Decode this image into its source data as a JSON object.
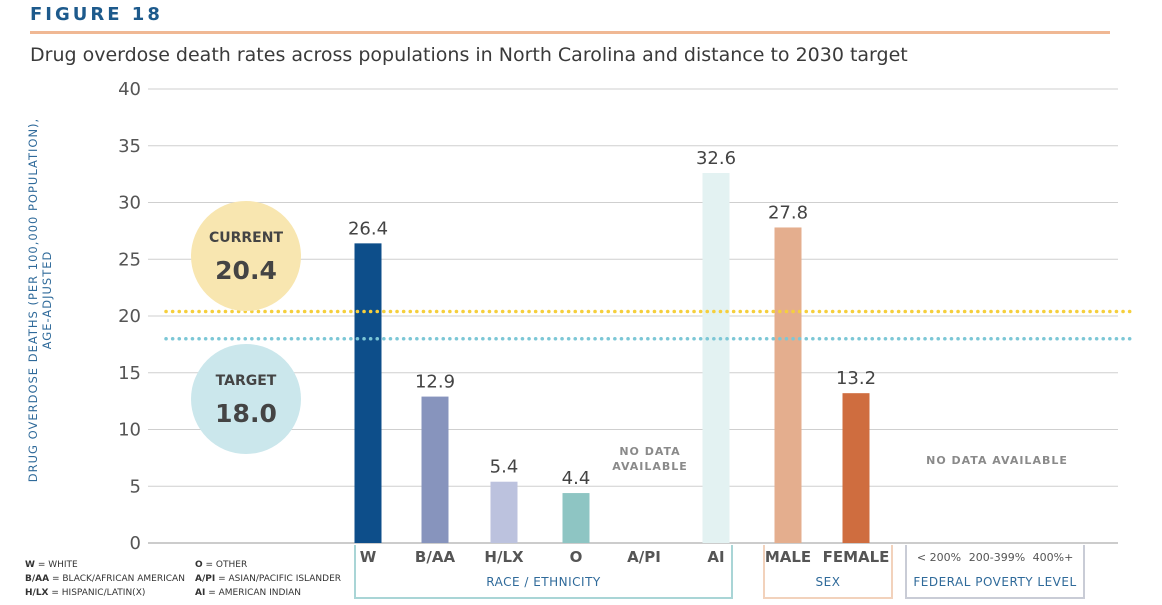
{
  "header": {
    "figure_label": "FIGURE 18",
    "title": "Drug overdose death rates across populations in North Carolina and distance to 2030 target"
  },
  "chart_data": {
    "type": "bar",
    "ylabel_line1": "DRUG OVERDOSE DEATHS (PER 100,000 POPULATION),",
    "ylabel_line2": "AGE-ADJUSTED",
    "ylim": [
      0,
      40
    ],
    "yticks": [
      0,
      5,
      10,
      15,
      20,
      25,
      30,
      35,
      40
    ],
    "grid": true,
    "categories": [
      "W",
      "B/AA",
      "H/LX",
      "O",
      "A/PI",
      "AI",
      "MALE",
      "FEMALE",
      "< 200%",
      "200-399%",
      "400%+"
    ],
    "bars": [
      {
        "category": "W",
        "value": 26.4,
        "label": "26.4",
        "color": "#0d4e8a"
      },
      {
        "category": "B/AA",
        "value": 12.9,
        "label": "12.9",
        "color": "#8794bd"
      },
      {
        "category": "H/LX",
        "value": 5.4,
        "label": "5.4",
        "color": "#bcc2de"
      },
      {
        "category": "O",
        "value": 4.4,
        "label": "4.4",
        "color": "#8ec5c3"
      },
      {
        "category": "AI",
        "value": 32.6,
        "label": "32.6",
        "color": "#e3f2f2"
      },
      {
        "category": "MALE",
        "value": 27.8,
        "label": "27.8",
        "color": "#e4ae8e"
      },
      {
        "category": "FEMALE",
        "value": 13.2,
        "label": "13.2",
        "color": "#cf6d3f"
      }
    ],
    "groups": [
      {
        "name": "RACE / ETHNICITY",
        "categories": [
          "W",
          "B/AA",
          "H/LX",
          "O",
          "A/PI",
          "AI"
        ],
        "color": "#a9d5d6"
      },
      {
        "name": "SEX",
        "categories": [
          "MALE",
          "FEMALE"
        ],
        "color": "#f2d2bc"
      },
      {
        "name": "FEDERAL POVERTY LEVEL",
        "categories": [
          "< 200%",
          "200-399%",
          "400%+"
        ],
        "color": "#c9ccd6"
      }
    ],
    "no_data": [
      {
        "lines": [
          "NO DATA",
          "AVAILABLE"
        ],
        "near": "A/PI"
      },
      {
        "lines": [
          "NO DATA AVAILABLE"
        ],
        "near": "FEDERAL POVERTY LEVEL"
      }
    ],
    "reference_lines": [
      {
        "name": "CURRENT",
        "value": 20.4,
        "label": "20.4",
        "color": "#f5cf3d",
        "bubble_color": "#f8e6b0"
      },
      {
        "name": "TARGET",
        "value": 18.0,
        "label": "18.0",
        "color": "#7cc7d6",
        "bubble_color": "#cbe7ec"
      }
    ]
  },
  "legend": {
    "left": [
      {
        "abbr": "W",
        "text": "= WHITE"
      },
      {
        "abbr": "B/AA",
        "text": "= BLACK/AFRICAN AMERICAN"
      },
      {
        "abbr": "H/LX",
        "text": "= HISPANIC/LATIN(X)"
      }
    ],
    "right": [
      {
        "abbr": "O",
        "text": "= OTHER"
      },
      {
        "abbr": "A/PI",
        "text": "= ASIAN/PACIFIC ISLANDER"
      },
      {
        "abbr": "AI",
        "text": "= AMERICAN INDIAN"
      }
    ]
  }
}
